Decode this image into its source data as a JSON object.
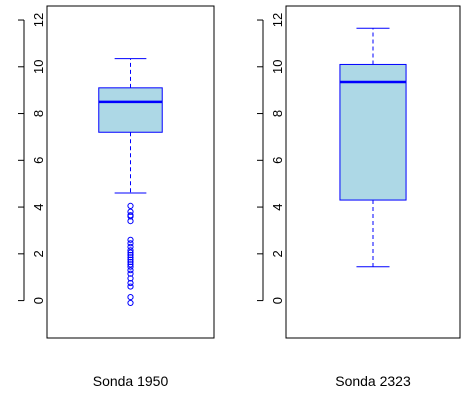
{
  "chart_data": [
    {
      "type": "box",
      "category": "Sonda 1950",
      "ylim": [
        -1.6,
        12.6
      ],
      "yticks": [
        0,
        2,
        4,
        6,
        8,
        10,
        12
      ],
      "box": {
        "whisker_low": 4.6,
        "q1": 7.2,
        "median": 8.5,
        "q3": 9.1,
        "whisker_high": 10.35
      },
      "outliers": [
        4.05,
        3.8,
        3.65,
        3.6,
        3.4,
        2.6,
        2.45,
        2.3,
        2.15,
        2.05,
        1.95,
        1.85,
        1.75,
        1.65,
        1.55,
        1.45,
        1.3,
        1.15,
        0.95,
        0.75,
        0.6,
        0.15,
        -0.1
      ],
      "colors": {
        "fill": "#add8e6",
        "stroke": "#0000ff"
      }
    },
    {
      "type": "box",
      "category": "Sonda 2323",
      "ylim": [
        -1.6,
        12.6
      ],
      "yticks": [
        0,
        2,
        4,
        6,
        8,
        10,
        12
      ],
      "box": {
        "whisker_low": 1.45,
        "q1": 4.3,
        "median": 9.35,
        "q3": 10.1,
        "whisker_high": 11.65
      },
      "outliers": [],
      "colors": {
        "fill": "#add8e6",
        "stroke": "#0000ff"
      }
    }
  ]
}
